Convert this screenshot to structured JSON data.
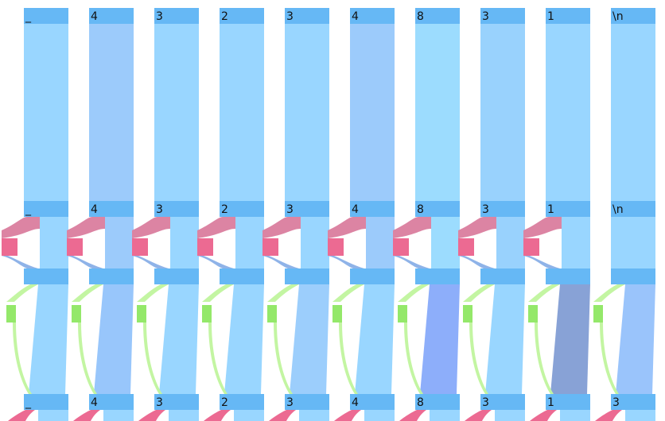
{
  "colors": {
    "node": "#66b8f5",
    "flow_default": "#99d6ff",
    "pink_node": "#ec6a92",
    "pink_flow": "#dc84a3",
    "blue_small_flow": "#8fb3e8",
    "green_node": "#94e86a",
    "green_flow": "#c3f5a2"
  },
  "columns": [
    {
      "top": "_",
      "mid": "_",
      "bottom": "_",
      "stream": "#99d6ff",
      "lower": "#99d6ff"
    },
    {
      "top": "4",
      "mid": "4",
      "bottom": "4",
      "stream": "#9ccbfb",
      "lower": "#98c6fb"
    },
    {
      "top": "3",
      "mid": "3",
      "bottom": "3",
      "stream": "#99d6ff",
      "lower": "#99d6ff"
    },
    {
      "top": "2",
      "mid": "2",
      "bottom": "2",
      "stream": "#99d6ff",
      "lower": "#99d6ff"
    },
    {
      "top": "3",
      "mid": "3",
      "bottom": "3",
      "stream": "#99d6ff",
      "lower": "#9ccefc"
    },
    {
      "top": "4",
      "mid": "4",
      "bottom": "4",
      "stream": "#9ccbfb",
      "lower": "#99d6ff"
    },
    {
      "top": "8",
      "mid": "8",
      "bottom": "8",
      "stream": "#9cdcfe",
      "lower": "#8daefa"
    },
    {
      "top": "3",
      "mid": "3",
      "bottom": "3",
      "stream": "#99d2fd",
      "lower": "#99d6ff"
    },
    {
      "top": "1",
      "mid": "1",
      "bottom": "1",
      "stream": "#99d6ff",
      "lower": "#88a2d6"
    },
    {
      "top": "\\n",
      "mid": "\\n",
      "bottom": "3",
      "stream": "#99d6ff",
      "lower": "#9ac4fb"
    }
  ]
}
